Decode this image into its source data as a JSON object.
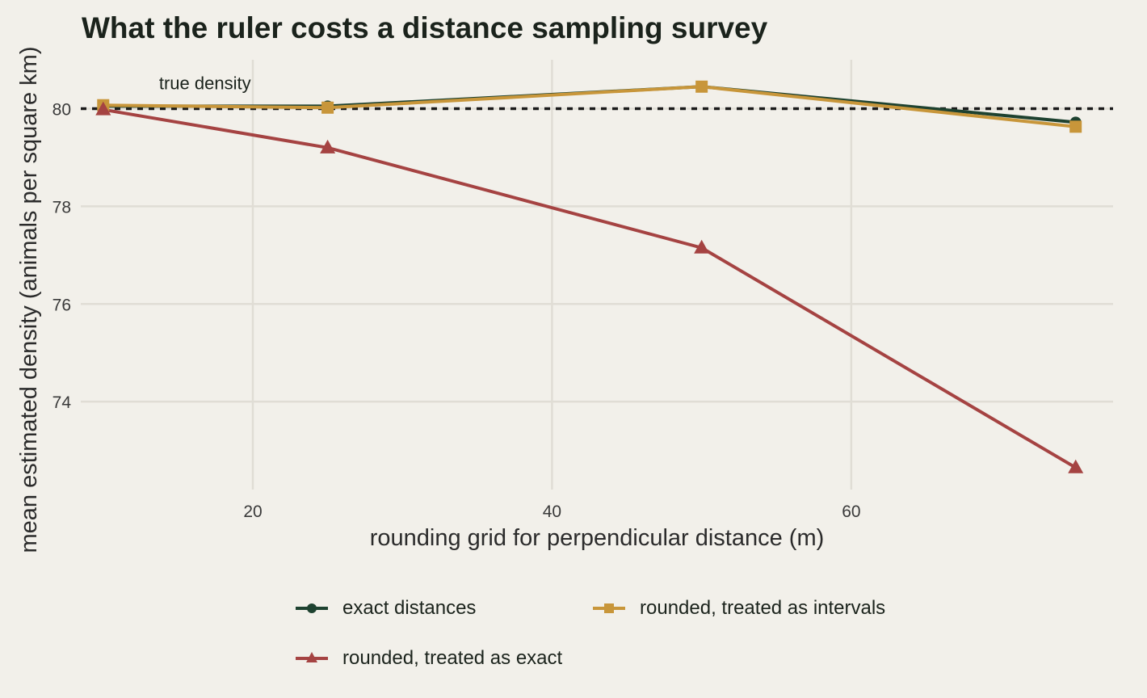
{
  "chart_data": {
    "type": "line",
    "title": "What the ruler costs a distance sampling survey",
    "xlabel": "rounding grid for perpendicular distance (m)",
    "ylabel": "mean estimated density (animals per square km)",
    "x": [
      10,
      25,
      50,
      75
    ],
    "xlim": [
      8.5,
      77.5
    ],
    "ylim": [
      72.2,
      81
    ],
    "xticks": [
      20,
      40,
      60
    ],
    "yticks": [
      74,
      76,
      78,
      80
    ],
    "grid": true,
    "legend_position": "bottom",
    "reference_line": {
      "y": 80,
      "label": "true density",
      "style": "dotted"
    },
    "series": [
      {
        "name": "exact distances",
        "values": [
          80.05,
          80.05,
          80.45,
          79.72
        ],
        "color": "#1e4230",
        "marker": "circle"
      },
      {
        "name": "rounded, treated as intervals",
        "values": [
          80.07,
          80.02,
          80.45,
          79.63
        ],
        "color": "#c8963a",
        "marker": "square"
      },
      {
        "name": "rounded, treated as exact",
        "values": [
          79.98,
          79.2,
          77.15,
          72.65
        ],
        "color": "#a54342",
        "marker": "triangle"
      }
    ]
  }
}
